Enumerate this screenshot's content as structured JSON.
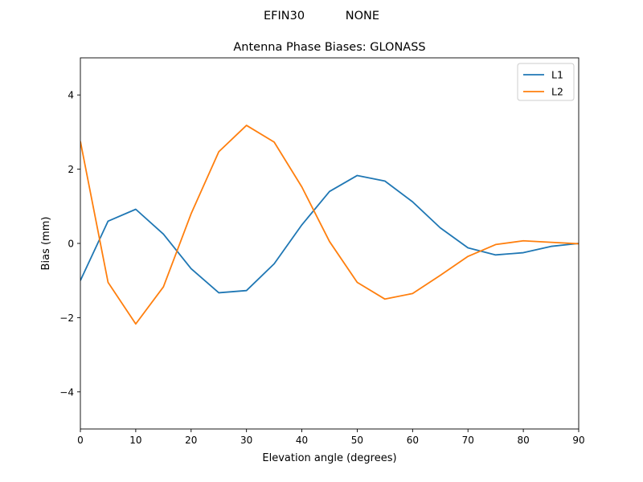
{
  "chart_data": {
    "type": "line",
    "suptitle": "EFIN30           NONE",
    "title": "Antenna Phase Biases: GLONASS",
    "xlabel": "Elevation angle (degrees)",
    "ylabel": "Bias (mm)",
    "xlim": [
      0,
      90
    ],
    "ylim": [
      -5,
      5
    ],
    "xticks": [
      0,
      10,
      20,
      30,
      40,
      50,
      60,
      70,
      80,
      90
    ],
    "yticks": [
      -4,
      -2,
      0,
      2,
      4
    ],
    "xtick_labels": [
      "0",
      "10",
      "20",
      "30",
      "40",
      "50",
      "60",
      "70",
      "80",
      "90"
    ],
    "ytick_labels": [
      "−4",
      "−2",
      "0",
      "2",
      "4"
    ],
    "grid": false,
    "legend_position": "top-right",
    "x": [
      0,
      5,
      10,
      15,
      20,
      25,
      30,
      35,
      40,
      45,
      50,
      55,
      60,
      65,
      70,
      75,
      80,
      85,
      90
    ],
    "series": [
      {
        "name": "L1",
        "color": "#1f77b4",
        "values": [
          -1.0,
          0.6,
          0.92,
          0.25,
          -0.68,
          -1.33,
          -1.27,
          -0.55,
          0.5,
          1.4,
          1.83,
          1.68,
          1.12,
          0.42,
          -0.12,
          -0.31,
          -0.25,
          -0.08,
          0.0
        ]
      },
      {
        "name": "L2",
        "color": "#ff7f0e",
        "values": [
          2.75,
          -1.05,
          -2.17,
          -1.17,
          0.8,
          2.47,
          3.18,
          2.73,
          1.52,
          0.05,
          -1.05,
          -1.5,
          -1.35,
          -0.86,
          -0.35,
          -0.03,
          0.07,
          0.03,
          -0.01
        ]
      }
    ]
  }
}
